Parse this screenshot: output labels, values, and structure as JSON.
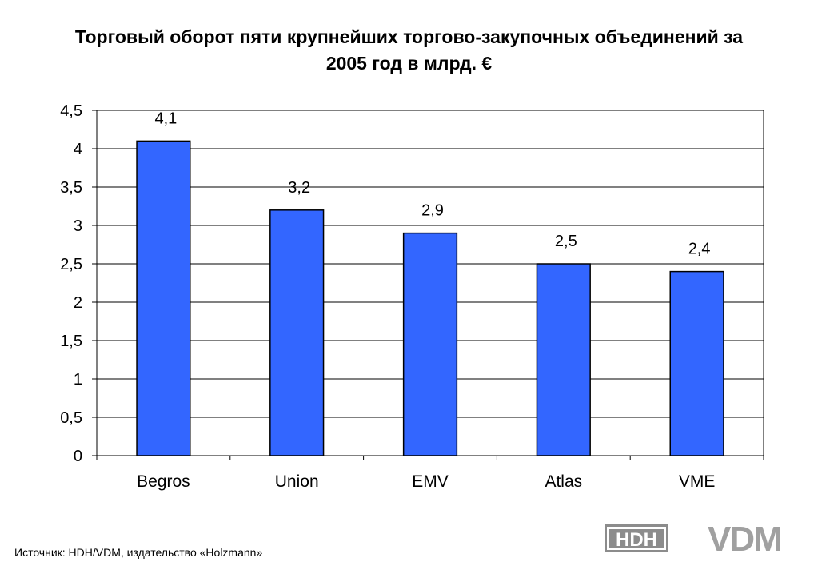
{
  "title_line1": "Торговый оборот пяти крупнейших торгово-закупочных объединений за",
  "title_line2": "2005 год в млрд. €",
  "source": "Источник: HDH/VDM, издательство «Holzmann»",
  "logos": {
    "left": "HDH",
    "right": "VDM"
  },
  "colors": {
    "bar": "#3366ff",
    "bar_border": "#000000",
    "grid": "#000000"
  },
  "chart_data": {
    "type": "bar",
    "title": "Торговый оборот пяти крупнейших торгово-закупочных объединений за 2005 год в млрд. €",
    "categories": [
      "Begros",
      "Union",
      "EMV",
      "Atlas",
      "VME"
    ],
    "values": [
      4.1,
      3.2,
      2.9,
      2.5,
      2.4
    ],
    "value_labels": [
      "4,1",
      "3,2",
      "2,9",
      "2,5",
      "2,4"
    ],
    "y_ticks": [
      0,
      0.5,
      1,
      1.5,
      2,
      2.5,
      3,
      3.5,
      4,
      4.5
    ],
    "y_tick_labels": [
      "0",
      "0,5",
      "1",
      "1,5",
      "2",
      "2,5",
      "3",
      "3,5",
      "4",
      "4,5"
    ],
    "ylim": [
      0,
      4.5
    ],
    "grid": true,
    "legend": "none"
  }
}
